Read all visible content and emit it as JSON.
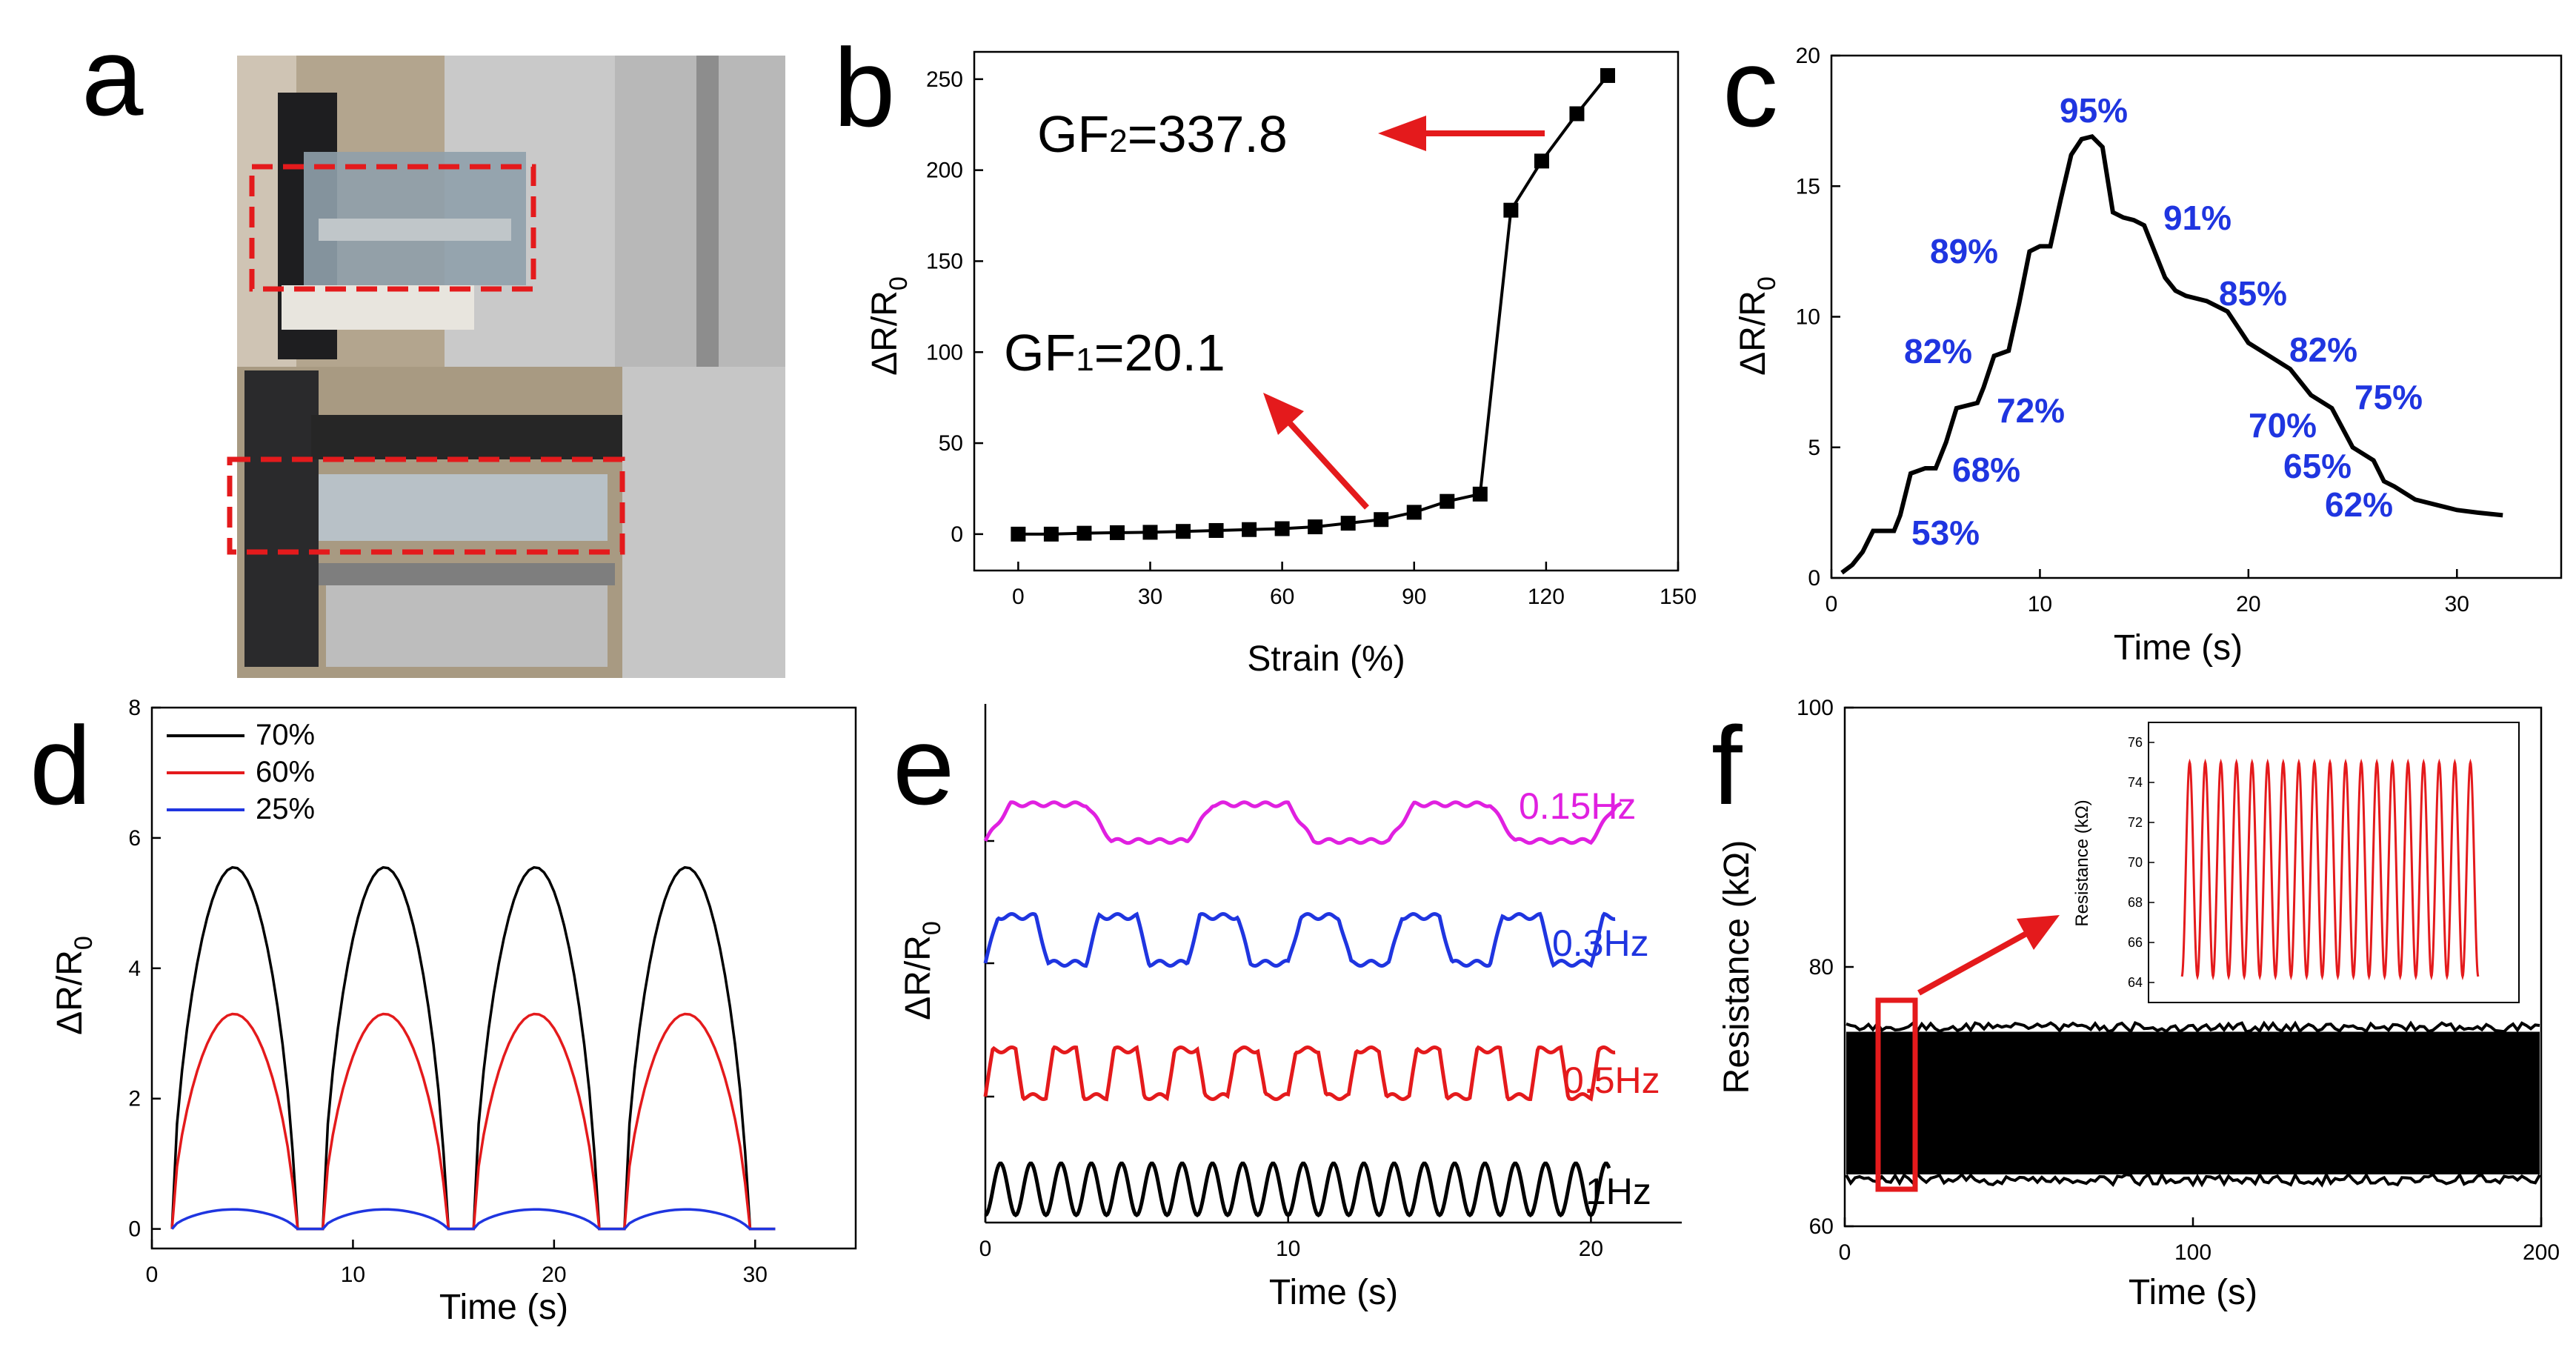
{
  "panel_labels": {
    "a": "a",
    "b": "b",
    "c": "c",
    "d": "d",
    "e": "e",
    "f": "f"
  },
  "colors": {
    "axis": "#000000",
    "red_annot": "#e41a1c",
    "pct_blue": "#1f35e0",
    "dashed": "#e41a1c",
    "black": "#000000",
    "red": "#e41a1c",
    "blue": "#1f35e0",
    "magenta": "#e020e0",
    "photo_bg": "#b7aa95"
  },
  "chart_data": [
    {
      "panel": "a",
      "type": "photo",
      "description_labels": []
    },
    {
      "panel": "b",
      "type": "line",
      "xlabel": "Strain (%)",
      "ylabel": "ΔR/R",
      "ylabel_sub": "0",
      "xlim": [
        -10,
        150
      ],
      "ylim": [
        -20,
        265
      ],
      "xticks": [
        0,
        30,
        60,
        90,
        120,
        150
      ],
      "yticks": [
        0,
        50,
        100,
        150,
        200,
        250
      ],
      "x": [
        0,
        7.5,
        15,
        22.5,
        30,
        37.5,
        45,
        52.5,
        60,
        67.5,
        75,
        82.5,
        90,
        97.5,
        105,
        112,
        119,
        127,
        134
      ],
      "y": [
        0,
        0,
        0.5,
        0.8,
        1,
        1.5,
        2,
        2.5,
        3,
        4,
        6,
        8,
        12,
        18,
        22,
        178,
        205,
        231,
        252
      ],
      "annotations": [
        {
          "text_main": "GF",
          "text_sub": "2",
          "text_rest": "=337.8"
        },
        {
          "text_main": "GF",
          "text_sub": "1",
          "text_rest": "=20.1"
        }
      ]
    },
    {
      "panel": "c",
      "type": "line",
      "xlabel": "Time (s)",
      "ylabel": "ΔR/R",
      "ylabel_sub": "0",
      "xlim": [
        0,
        35
      ],
      "ylim": [
        0,
        20
      ],
      "xticks": [
        0,
        10,
        20,
        30
      ],
      "yticks": [
        0,
        5,
        10,
        15,
        20
      ],
      "x": [
        0.5,
        1,
        1.5,
        2,
        3,
        3.3,
        3.8,
        4.5,
        5,
        5.5,
        6,
        7,
        7.3,
        7.8,
        8.5,
        9,
        9.5,
        10,
        10.5,
        11,
        11.5,
        12,
        12.5,
        13,
        13.5,
        14,
        14.5,
        15,
        16,
        16.5,
        17,
        18,
        19,
        19.5,
        20,
        21,
        22,
        23,
        24,
        25,
        26,
        26.5,
        27,
        28,
        29,
        30,
        31,
        32.2
      ],
      "y": [
        0.2,
        0.5,
        1.0,
        1.8,
        1.8,
        2.4,
        4.0,
        4.2,
        4.2,
        5.2,
        6.5,
        6.7,
        7.3,
        8.5,
        8.7,
        10.5,
        12.5,
        12.7,
        12.7,
        14.5,
        16.2,
        16.8,
        16.9,
        16.5,
        14.0,
        13.8,
        13.7,
        13.5,
        11.5,
        11.0,
        10.8,
        10.6,
        10.2,
        9.6,
        9.0,
        8.5,
        8.0,
        7.0,
        6.5,
        5.0,
        4.5,
        3.7,
        3.5,
        3.0,
        2.8,
        2.6,
        2.5,
        2.4
      ],
      "percent_labels": [
        "53%",
        "68%",
        "72%",
        "82%",
        "89%",
        "95%",
        "91%",
        "85%",
        "82%",
        "75%",
        "70%",
        "65%",
        "62%"
      ]
    },
    {
      "panel": "d",
      "type": "line",
      "xlabel": "Time (s)",
      "ylabel": "ΔR/R",
      "ylabel_sub": "0",
      "xlim": [
        0,
        35
      ],
      "ylim": [
        -0.3,
        8
      ],
      "xticks": [
        0,
        10,
        20,
        30
      ],
      "yticks": [
        0,
        2,
        4,
        6,
        8
      ],
      "series": [
        {
          "name": "70%",
          "peak": 5.55,
          "color": "black"
        },
        {
          "name": "60%",
          "peak": 3.3,
          "color": "red"
        },
        {
          "name": "25%",
          "peak": 0.3,
          "color": "blue"
        }
      ],
      "cycle_period_s": 7.5,
      "cycles": 4,
      "t_start": 1,
      "t_end": 31
    },
    {
      "panel": "e",
      "type": "line",
      "xlabel": "Time (s)",
      "ylabel": "ΔR/R",
      "ylabel_sub": "0",
      "xlim": [
        0,
        23
      ],
      "xticks": [
        0,
        10,
        20
      ],
      "series": [
        {
          "name": "0.15Hz",
          "label": "0.15Hz",
          "color": "magenta",
          "freq": 0.15
        },
        {
          "name": "0.3Hz",
          "label": "0.3Hz",
          "color": "blue",
          "freq": 0.3
        },
        {
          "name": "0.5Hz",
          "label": "0.5Hz",
          "color": "red",
          "freq": 0.5
        },
        {
          "name": "1Hz",
          "label": "1Hz",
          "color": "black",
          "freq": 1.0
        }
      ]
    },
    {
      "panel": "f",
      "type": "line",
      "xlabel": "Time (s)",
      "ylabel": "Resistance (kΩ)",
      "xlim": [
        0,
        200
      ],
      "ylim": [
        60,
        100
      ],
      "xticks": [
        0,
        100,
        200
      ],
      "yticks": [
        60,
        80,
        100
      ],
      "band_min": 64,
      "band_max": 75,
      "inset": {
        "ylabel": "Resistance (kΩ)",
        "yticks": [
          64,
          66,
          68,
          70,
          72,
          74,
          76
        ],
        "ylim": [
          63,
          77
        ],
        "min": 64.3,
        "max": 75.0,
        "cycles": 19
      }
    }
  ]
}
